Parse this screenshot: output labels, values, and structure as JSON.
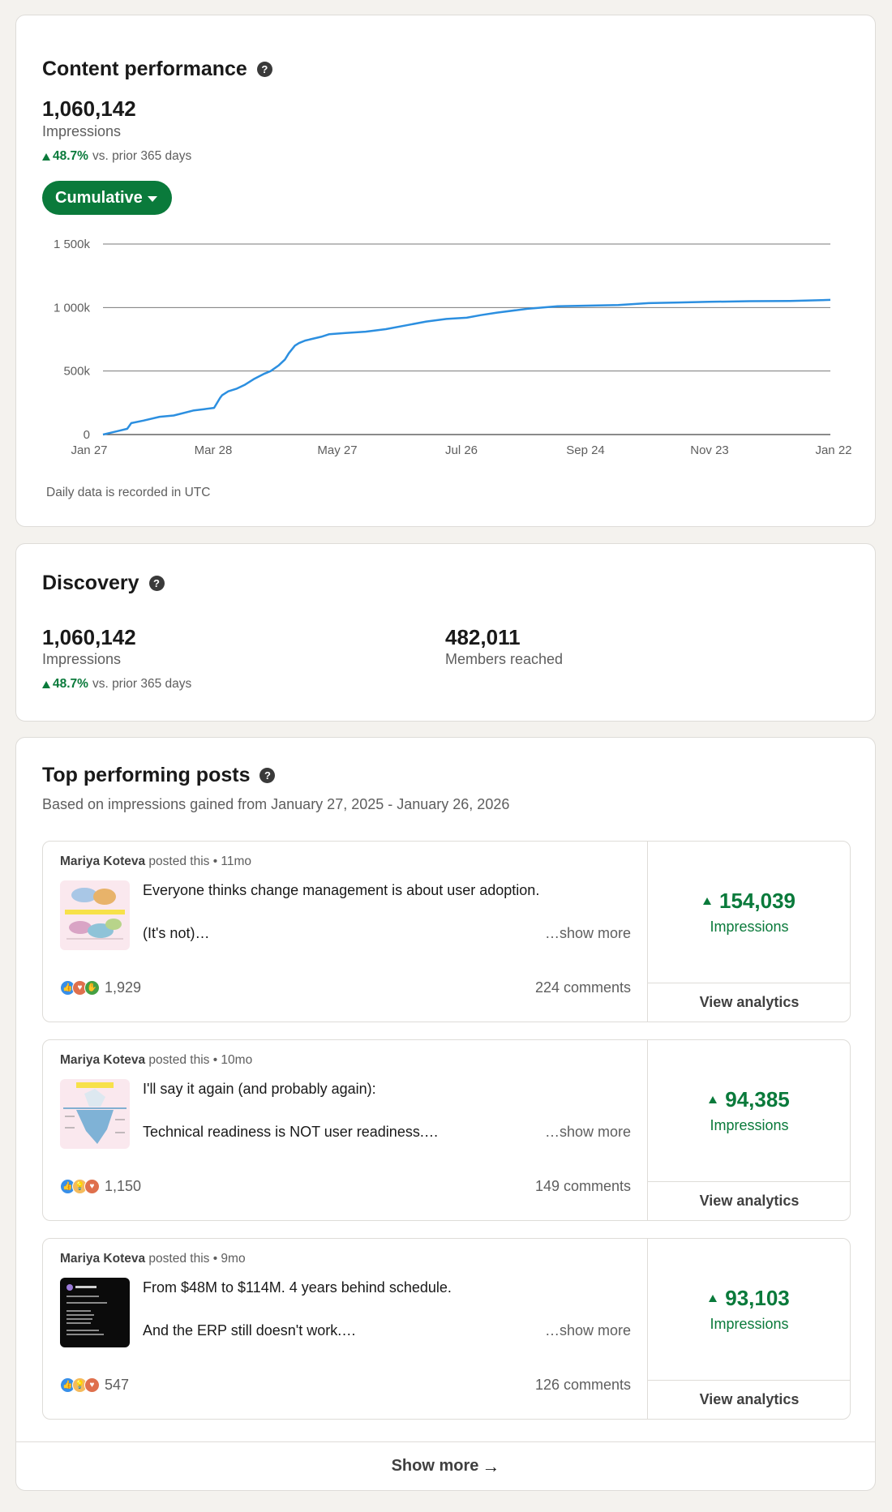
{
  "performance": {
    "title": "Content performance",
    "impressions_value": "1,060,142",
    "impressions_label": "Impressions",
    "delta_pct": "48.7%",
    "delta_text": "vs. prior 365 days",
    "view_mode": "Cumulative",
    "note": "Daily data is recorded in UTC"
  },
  "chart_data": {
    "type": "line",
    "x_ticks": [
      "Jan 27",
      "Mar 28",
      "May 27",
      "Jul 26",
      "Sep 24",
      "Nov 23",
      "Jan 22"
    ],
    "y_ticks": [
      "0",
      "500k",
      "1 000k",
      "1 500k"
    ],
    "ylim": [
      0,
      1500000
    ],
    "xlim": [
      0,
      360
    ],
    "x_unit": "days",
    "grid": true,
    "line_color": "#2c8fe0",
    "series": [
      {
        "x": [
          0,
          8,
          12,
          14,
          20,
          28,
          35,
          45,
          50,
          55,
          58,
          59,
          62,
          66,
          70,
          75,
          80,
          83,
          87,
          90,
          92,
          95,
          97,
          100,
          108,
          112,
          120,
          130,
          140,
          150,
          160,
          170,
          180,
          187,
          195,
          210,
          225,
          240,
          255,
          270,
          285,
          300,
          320,
          340,
          360
        ],
        "y": [
          0,
          30000,
          45000,
          90000,
          110000,
          140000,
          150000,
          190000,
          200000,
          210000,
          290000,
          310000,
          340000,
          360000,
          390000,
          440000,
          480000,
          500000,
          545000,
          590000,
          640000,
          700000,
          720000,
          740000,
          770000,
          790000,
          800000,
          810000,
          830000,
          860000,
          890000,
          910000,
          920000,
          940000,
          960000,
          990000,
          1010000,
          1015000,
          1020000,
          1035000,
          1040000,
          1045000,
          1050000,
          1052000,
          1060000
        ]
      }
    ]
  },
  "discovery": {
    "title": "Discovery",
    "impressions_value": "1,060,142",
    "impressions_label": "Impressions",
    "delta_pct": "48.7%",
    "delta_text": "vs. prior 365 days",
    "members_value": "482,011",
    "members_label": "Members reached"
  },
  "top_posts": {
    "title": "Top performing posts",
    "subtitle": "Based on impressions gained from January 27, 2025 - January 26, 2026",
    "show_more": "Show more",
    "posts": [
      {
        "author": "Mariya Koteva",
        "posted_text": "posted this • 11mo",
        "line1": "Everyone thinks change management is about user adoption.",
        "line2": "(It's not)…",
        "show_more": "…show more",
        "reactions": "1,929",
        "comments": "224 comments",
        "impressions": "154,039",
        "impressions_label": "Impressions",
        "view_analytics": "View analytics",
        "reaction_icons": [
          "like-icon",
          "love-icon",
          "celebrate-icon"
        ]
      },
      {
        "author": "Mariya Koteva",
        "posted_text": "posted this • 10mo",
        "line1": "I'll say it again (and probably again):",
        "line2": "Technical readiness is NOT user readiness.…",
        "show_more": "…show more",
        "reactions": "1,150",
        "comments": "149 comments",
        "impressions": "94,385",
        "impressions_label": "Impressions",
        "view_analytics": "View analytics",
        "reaction_icons": [
          "like-icon",
          "insight-icon",
          "love-icon"
        ]
      },
      {
        "author": "Mariya Koteva",
        "posted_text": "posted this • 9mo",
        "line1": "From $48M to $114M. 4 years behind schedule.",
        "line2": "And the ERP still doesn't work.…",
        "show_more": "…show more",
        "reactions": "547",
        "comments": "126 comments",
        "impressions": "93,103",
        "impressions_label": "Impressions",
        "view_analytics": "View analytics",
        "reaction_icons": [
          "like-icon",
          "insight-icon",
          "love-icon"
        ]
      }
    ]
  }
}
